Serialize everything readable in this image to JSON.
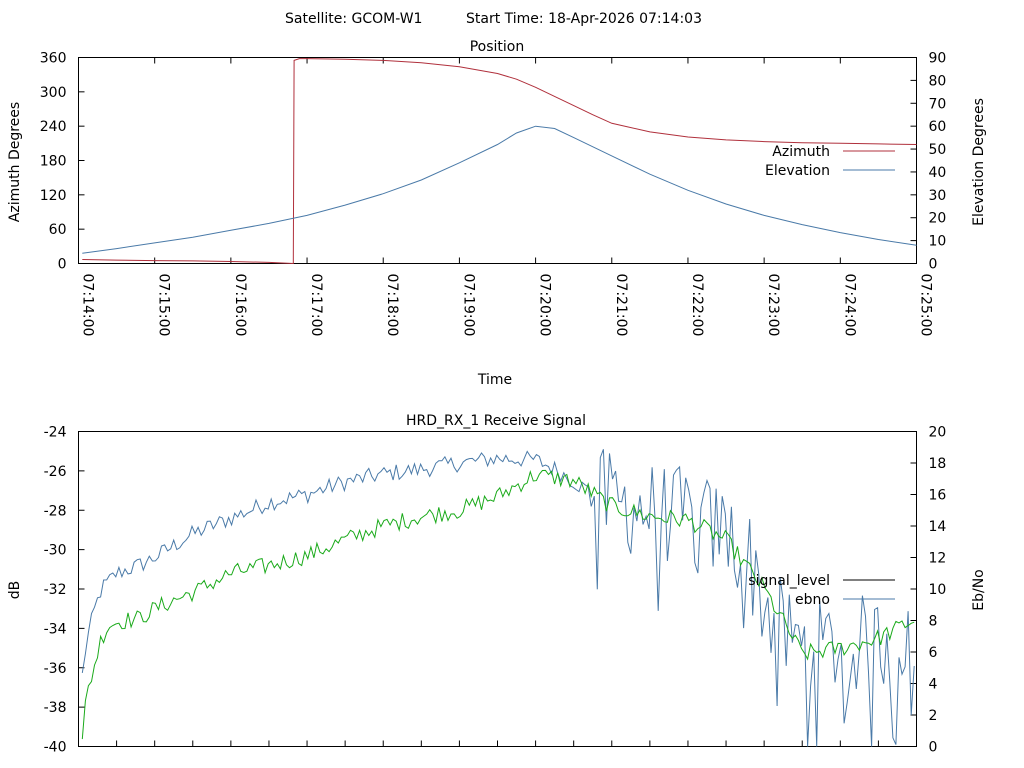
{
  "header": {
    "satellite": "Satellite: GCOM-W1",
    "start_time": "Start Time: 18-Apr-2026 07:14:03"
  },
  "colors": {
    "azimuth": "#b0303c",
    "elevation": "#4a7aa8",
    "signal_level": "#000000",
    "ebno": "#4a7aa8",
    "green_trace": "#1aaa1a"
  },
  "chart_data": [
    {
      "type": "line",
      "title": "Position",
      "xlabel": "Time",
      "ylabel": "Azimuth Degrees",
      "y2label": "Elevation Degrees",
      "xlim": [
        "07:14:00",
        "07:25:00"
      ],
      "ylim": [
        0,
        360
      ],
      "y2lim": [
        0,
        90
      ],
      "x_ticks": [
        "07:14:00",
        "07:15:00",
        "07:16:00",
        "07:17:00",
        "07:18:00",
        "07:19:00",
        "07:20:00",
        "07:21:00",
        "07:22:00",
        "07:23:00",
        "07:24:00",
        "07:25:00"
      ],
      "y_ticks": [
        "0",
        "60",
        "120",
        "180",
        "240",
        "300",
        "360"
      ],
      "y2_ticks": [
        "0",
        "10",
        "20",
        "30",
        "40",
        "50",
        "60",
        "70",
        "80",
        "90"
      ],
      "legend_position": "right",
      "series": [
        {
          "name": "Azimuth",
          "axis": "y1",
          "x_minutes": [
            0.05,
            0.5,
            1.0,
            1.5,
            2.0,
            2.5,
            2.82,
            2.83,
            2.9,
            3.0,
            3.5,
            4.0,
            4.5,
            5.0,
            5.5,
            5.75,
            6.0,
            6.25,
            6.5,
            6.75,
            7.0,
            7.5,
            8.0,
            8.5,
            9.0,
            9.5,
            10.0,
            10.5,
            11.0
          ],
          "values": [
            7,
            6,
            5,
            4.5,
            3.5,
            2,
            0,
            355,
            358,
            358,
            357,
            355,
            351,
            344,
            332,
            322,
            308,
            292,
            276,
            260,
            245,
            230,
            221,
            216,
            213,
            211,
            210,
            209,
            208
          ]
        },
        {
          "name": "Elevation",
          "axis": "y2",
          "x_minutes": [
            0.05,
            0.5,
            1.0,
            1.5,
            2.0,
            2.5,
            3.0,
            3.5,
            4.0,
            4.5,
            5.0,
            5.5,
            5.75,
            6.0,
            6.25,
            6.5,
            7.0,
            7.5,
            8.0,
            8.5,
            9.0,
            9.5,
            10.0,
            10.5,
            11.0
          ],
          "values": [
            4.5,
            6.5,
            9,
            11.5,
            14.5,
            17.5,
            21,
            25.5,
            30.5,
            36.5,
            44,
            52,
            57,
            60,
            59,
            55,
            47,
            39,
            32,
            26,
            21,
            17,
            13.5,
            10.5,
            8
          ]
        }
      ]
    },
    {
      "type": "line",
      "title": "HRD_RX_1 Receive Signal",
      "xlabel": "",
      "ylabel": "dB",
      "y2label": "Eb/No",
      "xlim": [
        "07:14:00",
        "07:25:00"
      ],
      "ylim": [
        -40,
        -24
      ],
      "y2lim": [
        0,
        20
      ],
      "y_ticks": [
        "-40",
        "-38",
        "-36",
        "-34",
        "-32",
        "-30",
        "-28",
        "-26",
        "-24"
      ],
      "y2_ticks": [
        "0",
        "2",
        "4",
        "6",
        "8",
        "10",
        "12",
        "14",
        "16",
        "18",
        "20"
      ],
      "legend_position": "right",
      "series": [
        {
          "name": "signal_level",
          "axis": "y1",
          "x_minutes": [
            0.05,
            0.1,
            0.2,
            0.3,
            0.4,
            0.6,
            0.8,
            1.0,
            1.3,
            1.6,
            2.0,
            2.5,
            3.0,
            3.5,
            4.0,
            4.5,
            5.0,
            5.5,
            6.0,
            6.5,
            7.0,
            7.5,
            8.0,
            8.5,
            9.0,
            9.5,
            10.0,
            10.5,
            11.0
          ],
          "values": [
            -39.8,
            -37.5,
            -36,
            -34.5,
            -33.8,
            -33.6,
            -33.5,
            -33,
            -32.5,
            -32,
            -31.2,
            -30.8,
            -30.3,
            -29.5,
            -28.8,
            -28.3,
            -28,
            -27.3,
            -26.2,
            -26.5,
            -27.8,
            -28.3,
            -28.5,
            -29.5,
            -32,
            -35.3,
            -35,
            -34.5,
            -33.5
          ],
          "noise": 0.45
        },
        {
          "name": "ebno",
          "axis": "y2",
          "x_minutes": [
            0.05,
            0.1,
            0.2,
            0.3,
            0.5,
            0.8,
            1.0,
            1.5,
            2.0,
            2.5,
            3.0,
            3.5,
            4.0,
            4.5,
            5.0,
            5.5,
            6.0,
            6.3,
            6.6,
            7.0,
            7.5,
            8.0,
            8.5,
            8.8,
            9.0,
            9.3,
            9.6,
            10.0,
            10.5,
            11.0
          ],
          "values": [
            4.5,
            6.5,
            8.5,
            10,
            11,
            11.5,
            12,
            13.5,
            14.5,
            15.5,
            16,
            16.8,
            17.3,
            17.6,
            18,
            18.3,
            18.2,
            17.5,
            16.5,
            15.5,
            15,
            14.5,
            13.5,
            12,
            9,
            7,
            6,
            6.5,
            6.5,
            7.5
          ],
          "noise": 0.55,
          "dropout_noise": 3.2
        }
      ]
    }
  ]
}
